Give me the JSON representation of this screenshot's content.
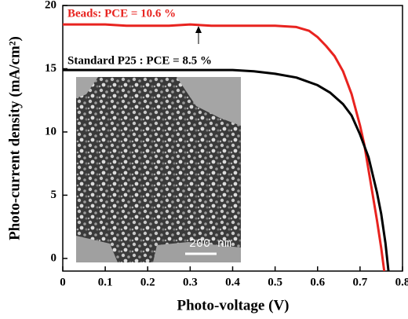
{
  "chart_data": {
    "type": "line",
    "xlabel": "Photo-voltage (V)",
    "ylabel": "Photo-current density (mA/cm²)",
    "inset_scale_label": "200 nm",
    "xlim": [
      0,
      0.8
    ],
    "ylim": [
      -1,
      20
    ],
    "xticks": [
      0,
      0.1,
      0.2,
      0.3,
      0.4,
      0.5,
      0.6,
      0.7,
      0.8
    ],
    "yticks": [
      0,
      5,
      10,
      15,
      20
    ],
    "series": [
      {
        "name": "Beads: PCE = 10.6 %",
        "color": "#e8231f",
        "x": [
          0,
          0.05,
          0.1,
          0.15,
          0.2,
          0.25,
          0.3,
          0.35,
          0.4,
          0.45,
          0.5,
          0.55,
          0.58,
          0.6,
          0.62,
          0.64,
          0.66,
          0.68,
          0.7,
          0.71,
          0.72,
          0.73,
          0.74,
          0.75,
          0.757
        ],
        "values": [
          18.5,
          18.5,
          18.5,
          18.4,
          18.4,
          18.4,
          18.5,
          18.4,
          18.4,
          18.4,
          18.4,
          18.3,
          18.0,
          17.5,
          16.8,
          16.0,
          14.8,
          13.0,
          10.5,
          9.0,
          7.0,
          5.0,
          3.0,
          0.8,
          -1
        ]
      },
      {
        "name": "Standard P25 : PCE = 8.5 %",
        "color": "#000000",
        "x": [
          0,
          0.05,
          0.1,
          0.15,
          0.2,
          0.25,
          0.3,
          0.35,
          0.4,
          0.45,
          0.5,
          0.55,
          0.6,
          0.63,
          0.66,
          0.68,
          0.7,
          0.72,
          0.74,
          0.75,
          0.76,
          0.767
        ],
        "values": [
          14.9,
          14.9,
          14.9,
          14.9,
          14.9,
          14.9,
          14.9,
          14.9,
          14.9,
          14.8,
          14.6,
          14.3,
          13.7,
          13.1,
          12.2,
          11.3,
          9.8,
          8.0,
          5.2,
          3.5,
          1.2,
          -1
        ]
      }
    ]
  }
}
